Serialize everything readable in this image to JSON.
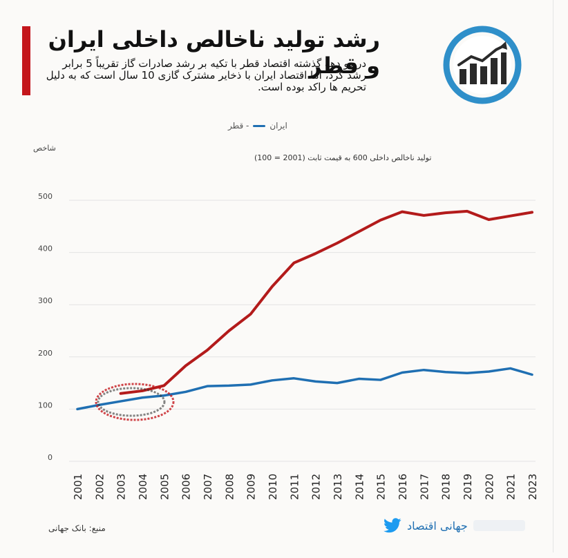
{
  "header": {
    "title": "رشد تولید ناخالص داخلی ایران و قطر",
    "subtitle": "در دو دهه گذشته اقتصاد قطر با تکیه بر رشد صادرات گاز تقریباً 5 برابر رشد کرد، اما اقتصاد ایران با ذخایر مشترک گازی 10 سال است که به دلیل تحریم ها راکد بوده است.",
    "logo_icon": "rising-bar-chart-icon"
  },
  "legend": {
    "iran_label": "ایران",
    "qatar_label": "- قطر"
  },
  "chart_data": {
    "type": "line",
    "ylabel": "شاخص",
    "note": "تولید ناخالص داخلی 600 به قیمت ثابت (2001 = 100)",
    "ylim": [
      0,
      500
    ],
    "yticks": [
      0,
      100,
      200,
      300,
      400,
      500
    ],
    "x": [
      "2001",
      "2002",
      "2003",
      "2004",
      "2005",
      "2006",
      "2007",
      "2008",
      "2009",
      "2010",
      "2011",
      "2012",
      "2013",
      "2014",
      "2015",
      "2016",
      "2017",
      "2018",
      "2019",
      "2020",
      "2021",
      "2023"
    ],
    "series": [
      {
        "name": "ایران",
        "color": "#1f6fb2",
        "values": [
          100,
          108,
          115,
          122,
          126,
          133,
          144,
          145,
          147,
          155,
          159,
          153,
          150,
          158,
          156,
          170,
          175,
          171,
          169,
          172,
          178,
          166
        ]
      },
      {
        "name": "قطر",
        "color": "#b31b1b",
        "values": [
          null,
          null,
          130,
          135,
          145,
          183,
          213,
          250,
          282,
          335,
          380,
          398,
          418,
          440,
          462,
          478,
          471,
          476,
          479,
          463,
          470,
          477
        ]
      }
    ],
    "grid": true
  },
  "footer": {
    "source": "منبع: بانک جهانی",
    "brand": "جهانی اقتصاد",
    "brand_icon": "twitter-bird-icon"
  }
}
